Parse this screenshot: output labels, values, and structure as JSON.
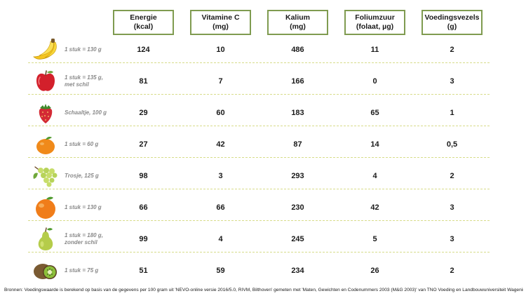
{
  "columns": [
    {
      "line1": "Energie",
      "line2": "(kcal)"
    },
    {
      "line1": "Vitamine C",
      "line2": "(mg)"
    },
    {
      "line1": "Kalium",
      "line2": "(mg)"
    },
    {
      "line1": "Foliumzuur",
      "line2": "(folaat, µg)"
    },
    {
      "line1": "Voedingsvezels",
      "line2": "(g)"
    }
  ],
  "rows": [
    {
      "icon": "banana-icon",
      "portion_line1": "1 stuk = 130 g",
      "portion_line2": "",
      "values": [
        "124",
        "10",
        "486",
        "11",
        "2"
      ]
    },
    {
      "icon": "apple-icon",
      "portion_line1": "1 stuk = 135 g,",
      "portion_line2": "met schil",
      "values": [
        "81",
        "7",
        "166",
        "0",
        "3"
      ]
    },
    {
      "icon": "strawberry-icon",
      "portion_line1": "Schaaltje, 100 g",
      "portion_line2": "",
      "values": [
        "29",
        "60",
        "183",
        "65",
        "1"
      ]
    },
    {
      "icon": "mandarin-icon",
      "portion_line1": "1 stuk = 60 g",
      "portion_line2": "",
      "values": [
        "27",
        "42",
        "87",
        "14",
        "0,5"
      ]
    },
    {
      "icon": "grapes-icon",
      "portion_line1": "Trosje, 125 g",
      "portion_line2": "",
      "values": [
        "98",
        "3",
        "293",
        "4",
        "2"
      ]
    },
    {
      "icon": "orange-icon",
      "portion_line1": "1 stuk = 130 g",
      "portion_line2": "",
      "values": [
        "66",
        "66",
        "230",
        "42",
        "3"
      ]
    },
    {
      "icon": "pear-icon",
      "portion_line1": "1 stuk = 180 g,",
      "portion_line2": "zonder schil",
      "values": [
        "99",
        "4",
        "245",
        "5",
        "3"
      ]
    },
    {
      "icon": "kiwi-icon",
      "portion_line1": "1 stuk = 75 g",
      "portion_line2": "",
      "values": [
        "51",
        "59",
        "234",
        "26",
        "2"
      ]
    }
  ],
  "footer": "Bronnen: Voedingswaarde is berekend op basis van de gegevens per 100 gram uit 'NEVO-online versie 2016/5.0, RIVM, Bilthoven' gemeten met 'Maten, Gewichten en Codenummers 2003 (M&G 2003)' van TNO Voeding en Landbouwuniversiteit Wageningen.",
  "colors": {
    "header_border": "#7f9b50",
    "row_separator": "#d7dc8a",
    "portion_text": "#8a8a8a"
  }
}
